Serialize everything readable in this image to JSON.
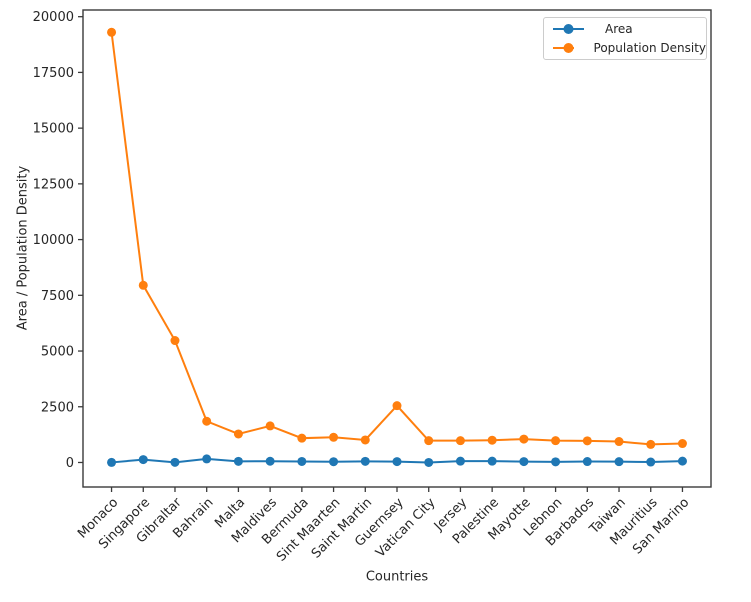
{
  "chart_data": {
    "type": "line",
    "title": "",
    "xlabel": "Countries",
    "ylabel": "Area / Population Density",
    "categories": [
      "Monaco",
      "Singapore",
      "Gibraltar",
      "Bahrain",
      "Malta",
      "Maldives",
      "Bermuda",
      "Sint Maarten",
      "Saint Martin",
      "Guernsey",
      "Vatican City",
      "Jersey",
      "Palestine",
      "Mayotte",
      "Lebnon",
      "Barbados",
      "Taiwan",
      "Mauritius",
      "San Marino"
    ],
    "series": [
      {
        "name": "Area",
        "color": "#1f77b4",
        "values": [
          2,
          130,
          7,
          160,
          50,
          55,
          45,
          34,
          50,
          40,
          0,
          60,
          60,
          40,
          30,
          43,
          36,
          20,
          61
        ]
      },
      {
        "name": "Population Density",
        "color": "#ff7f0e",
        "values": [
          19300,
          7950,
          5470,
          1850,
          1280,
          1640,
          1090,
          1130,
          1010,
          2550,
          980,
          980,
          1000,
          1050,
          980,
          970,
          940,
          810,
          850
        ]
      }
    ],
    "yticks": [
      0,
      2500,
      5000,
      7500,
      10000,
      12500,
      15000,
      17500,
      20000
    ],
    "ylim": [
      -1100,
      20300
    ],
    "grid": false,
    "legend_position": "upper right"
  },
  "colors": {
    "area_series": "#1f77b4",
    "population_density_series": "#ff7f0e",
    "spine": "#3a3a3a",
    "text": "#262626",
    "legend_border": "#cccccc"
  }
}
